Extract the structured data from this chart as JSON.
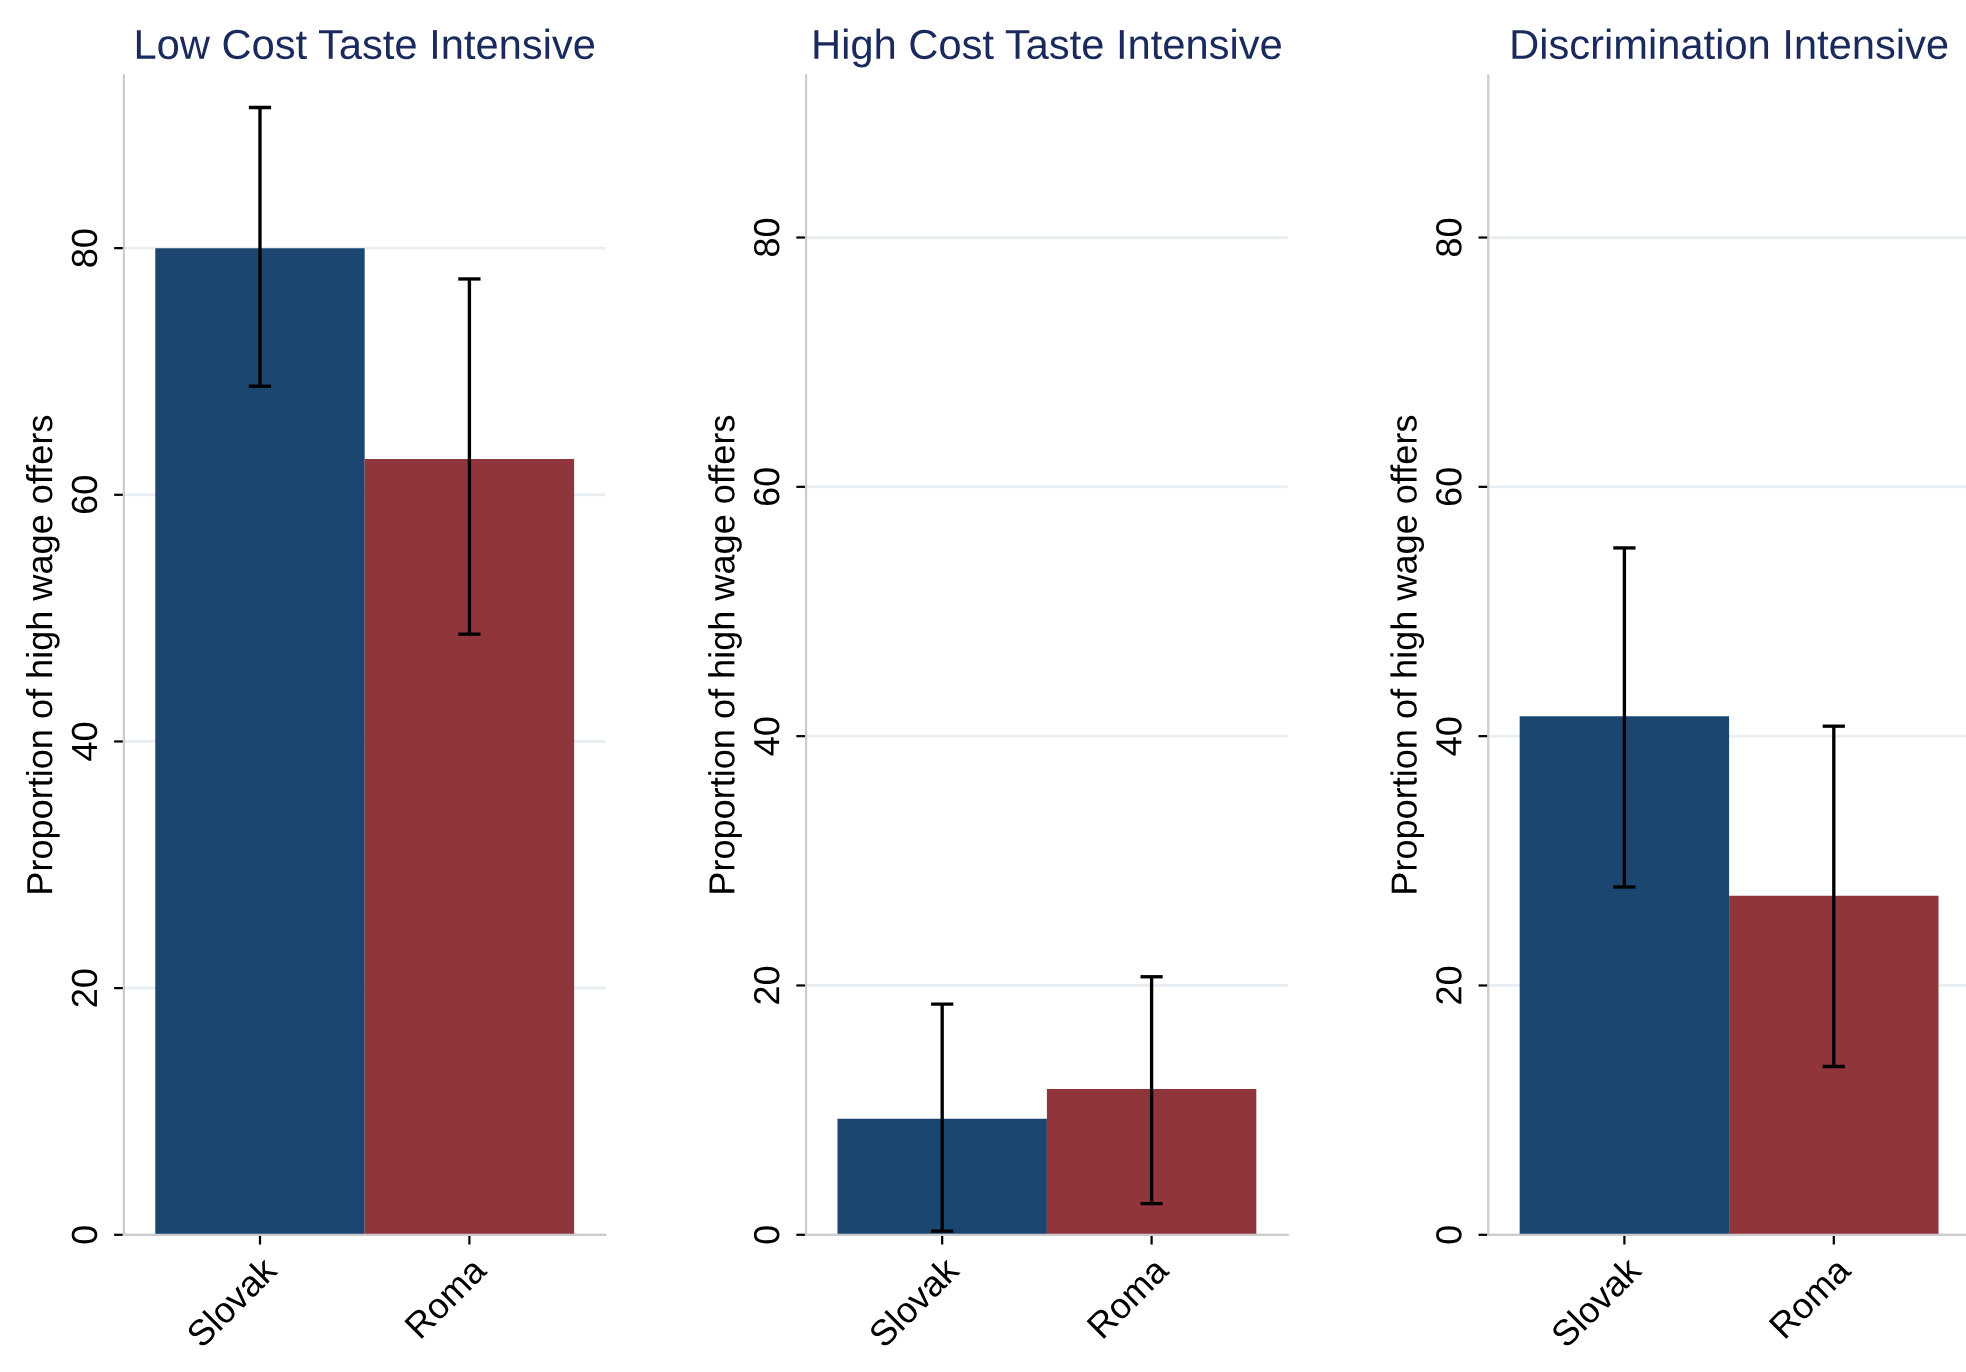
{
  "chart_data": [
    {
      "type": "bar",
      "title": "Low Cost Taste Intensive",
      "ylabel": "Proportion of high wage offers",
      "categories": [
        "Slovak",
        "Roma"
      ],
      "values": [
        80,
        62.9
      ],
      "colors": [
        "#1a4670",
        "#90353b"
      ],
      "errors": [
        [
          68.8,
          91.4
        ],
        [
          48.7,
          77.5
        ]
      ],
      "ylim": [
        0,
        94
      ],
      "yticks": [
        0,
        20,
        40,
        60,
        80
      ],
      "grid": "y"
    },
    {
      "type": "bar",
      "title": "High Cost Taste Intensive",
      "ylabel": "Proportion of high wage offers",
      "categories": [
        "Slovak",
        "Roma"
      ],
      "values": [
        9.3,
        11.7
      ],
      "colors": [
        "#1a4670",
        "#90353b"
      ],
      "errors": [
        [
          0.3,
          18.5
        ],
        [
          2.5,
          20.7
        ]
      ],
      "ylim": [
        0,
        93
      ],
      "yticks": [
        0,
        20,
        40,
        60,
        80
      ],
      "grid": "y"
    },
    {
      "type": "bar",
      "title": "Discrimination Intensive",
      "ylabel": "Proportion of high wage offers",
      "categories": [
        "Slovak",
        "Roma"
      ],
      "values": [
        41.6,
        27.2
      ],
      "colors": [
        "#1a4670",
        "#90353b"
      ],
      "errors": [
        [
          27.9,
          55.1
        ],
        [
          13.5,
          40.8
        ]
      ],
      "ylim": [
        0,
        93
      ],
      "yticks": [
        0,
        20,
        40,
        60,
        80
      ],
      "grid": "y"
    }
  ]
}
